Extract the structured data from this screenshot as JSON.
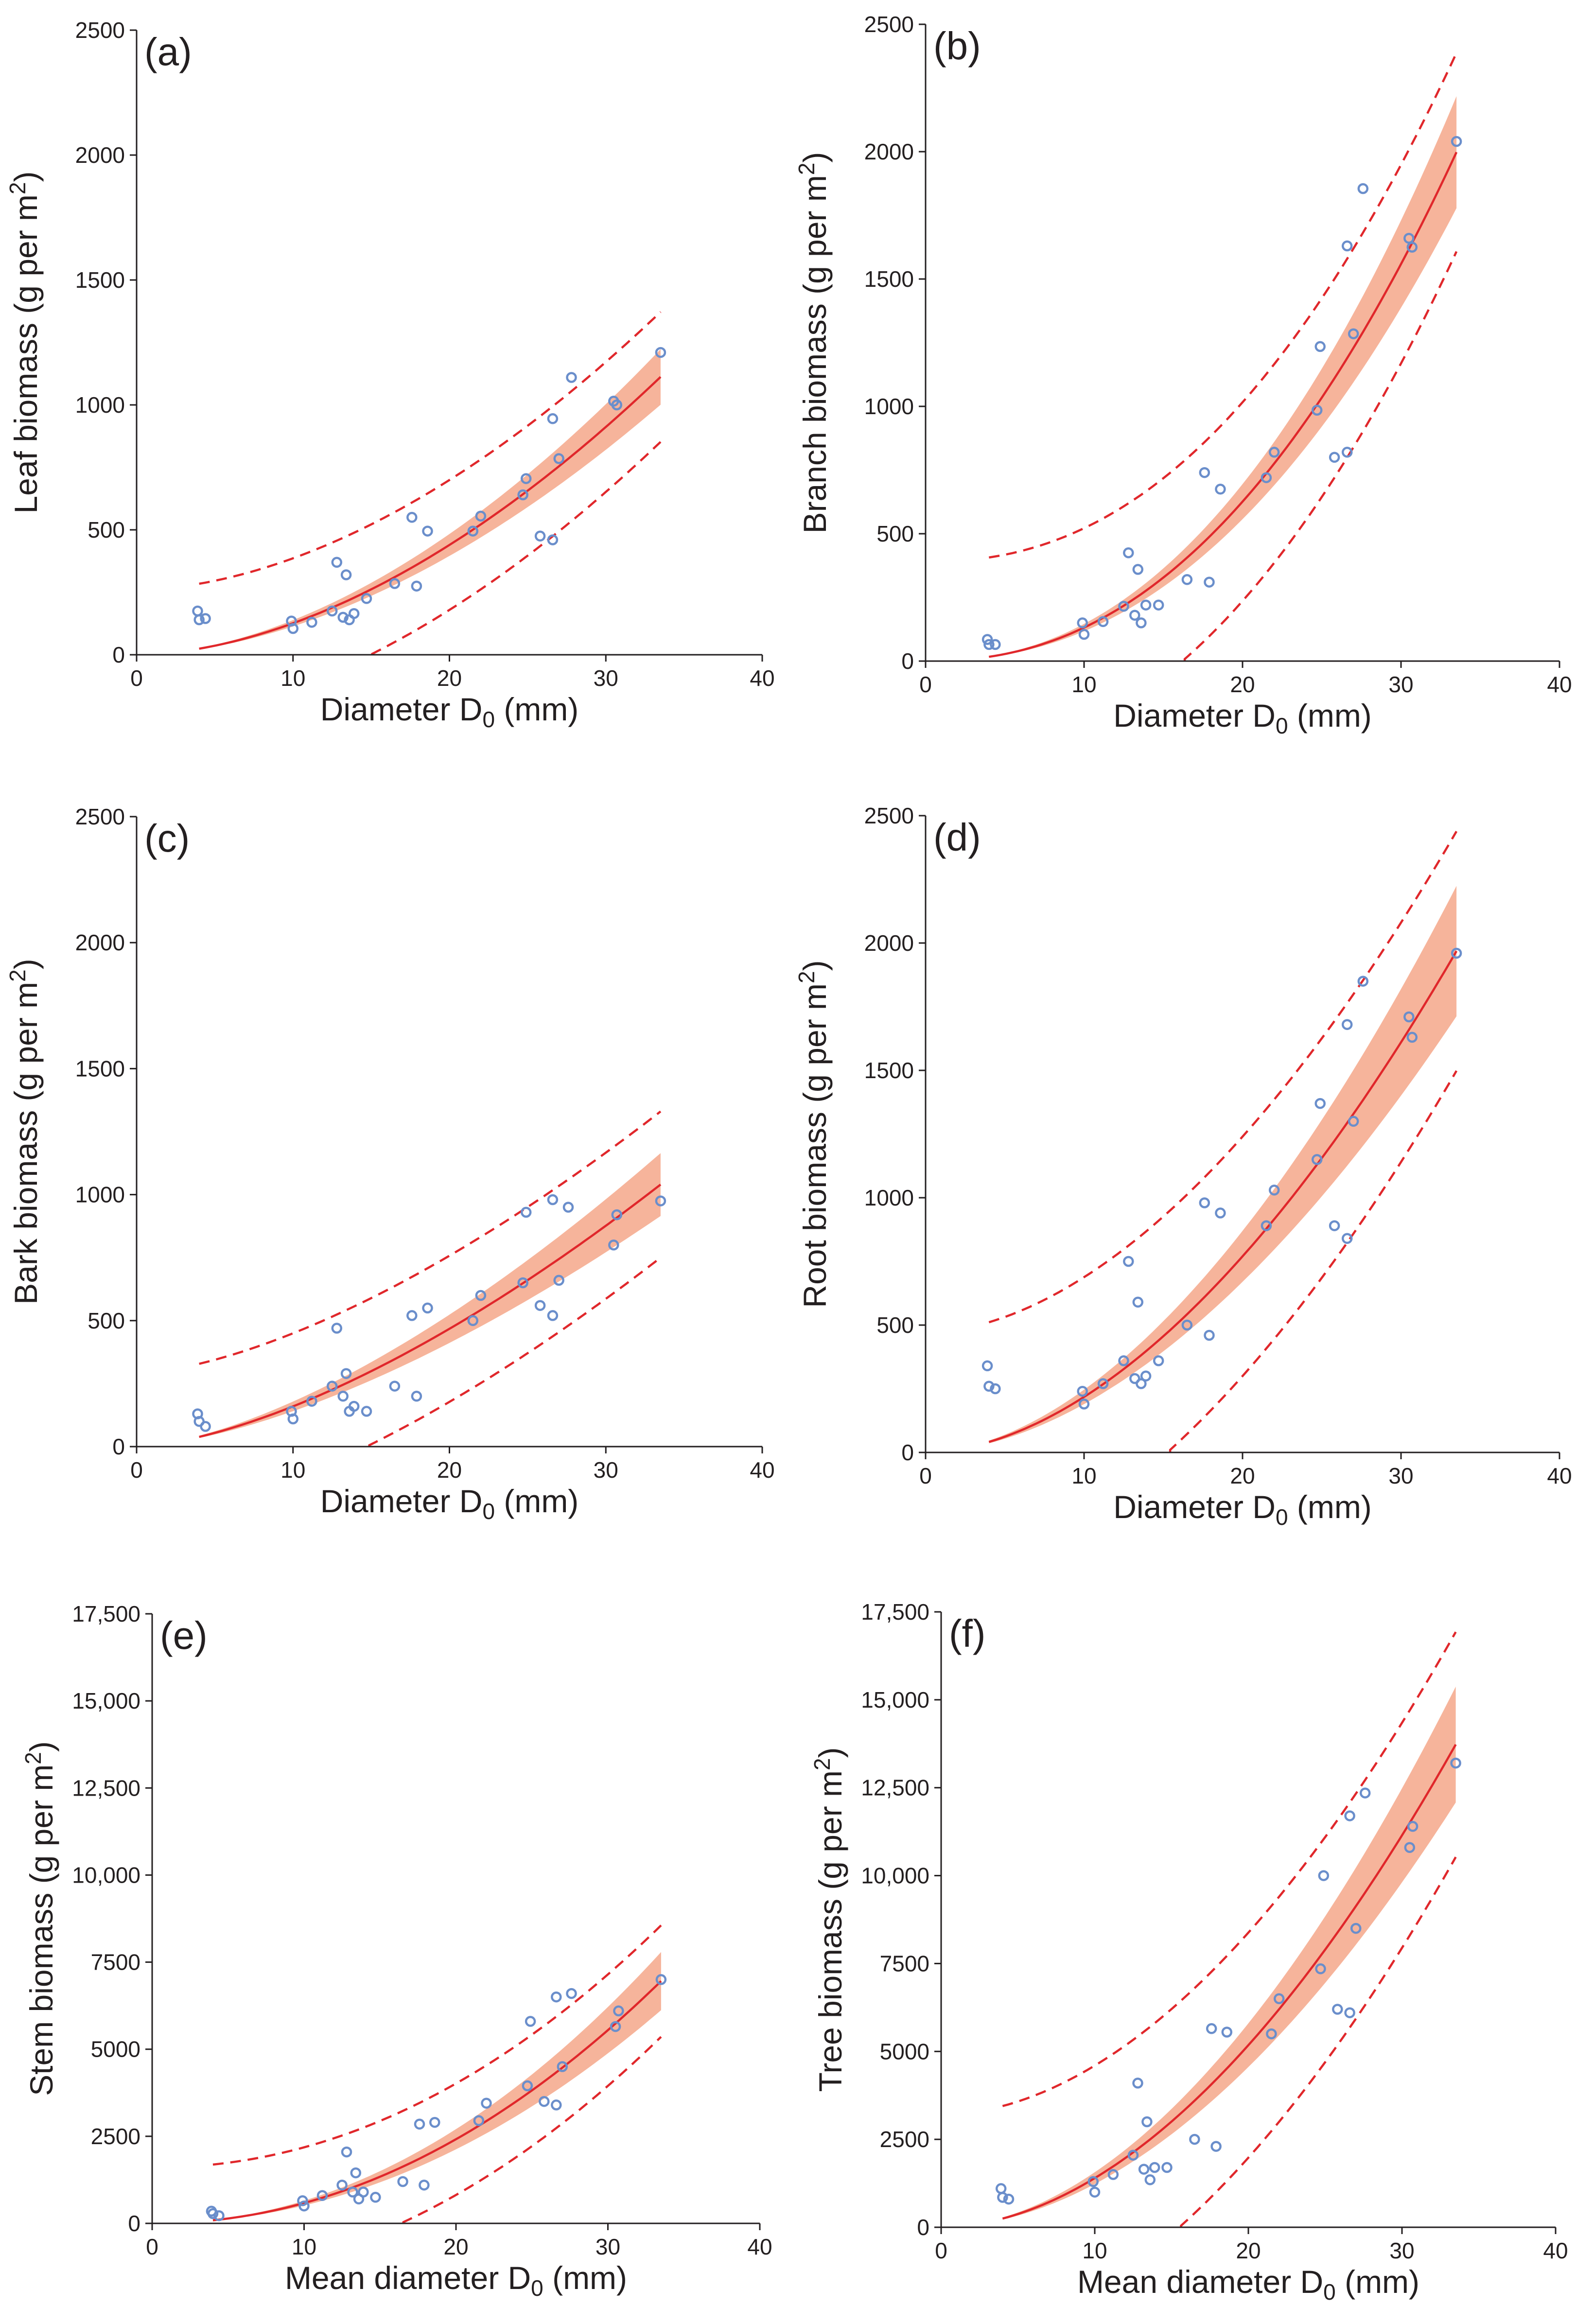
{
  "chart_data": [
    {
      "type": "scatter",
      "panel": "(a)",
      "xlabel": "Diameter D",
      "xlabel_sub": "0",
      "xlabel_unit": " (mm)",
      "ylabel": "Leaf biomass (g per m",
      "ylabel_sup": "2",
      "ylabel_close": ")",
      "xlim": [
        0,
        40
      ],
      "ylim": [
        0,
        2500
      ],
      "xticks": [
        0,
        10,
        20,
        30,
        40
      ],
      "yticks": [
        0,
        500,
        1000,
        1500,
        2000,
        2500
      ],
      "ytick_labels": [
        "0",
        "500",
        "1000",
        "1500",
        "2000",
        "2500"
      ],
      "points": [
        [
          3.9,
          175
        ],
        [
          4.0,
          140
        ],
        [
          4.4,
          145
        ],
        [
          9.9,
          135
        ],
        [
          10.0,
          105
        ],
        [
          11.2,
          130
        ],
        [
          12.5,
          175
        ],
        [
          12.8,
          370
        ],
        [
          13.2,
          150
        ],
        [
          13.4,
          320
        ],
        [
          13.6,
          140
        ],
        [
          13.9,
          165
        ],
        [
          14.7,
          225
        ],
        [
          16.5,
          285
        ],
        [
          17.6,
          550
        ],
        [
          17.9,
          275
        ],
        [
          18.6,
          495
        ],
        [
          21.5,
          495
        ],
        [
          22.0,
          555
        ],
        [
          24.7,
          640
        ],
        [
          24.9,
          705
        ],
        [
          25.8,
          475
        ],
        [
          26.6,
          945
        ],
        [
          26.6,
          460
        ],
        [
          27.0,
          785
        ],
        [
          27.8,
          1110
        ],
        [
          30.5,
          1015
        ],
        [
          30.7,
          1000
        ],
        [
          33.5,
          1210
        ]
      ],
      "fit": {
        "a": 2.0,
        "b": 1.8,
        "x_range": [
          4,
          33.5
        ]
      },
      "confidence_band": {
        "rel": 0.1
      },
      "prediction_interval": {
        "half_width": 260,
        "x_range": [
          4,
          33.5
        ]
      }
    },
    {
      "type": "scatter",
      "panel": "(b)",
      "xlabel": "Diameter D",
      "xlabel_sub": "0",
      "xlabel_unit": " (mm)",
      "ylabel": "Branch biomass (g per m",
      "ylabel_sup": "2",
      "ylabel_close": ")",
      "xlim": [
        0,
        40
      ],
      "ylim": [
        0,
        2500
      ],
      "xticks": [
        0,
        10,
        20,
        30,
        40
      ],
      "yticks": [
        0,
        500,
        1000,
        1500,
        2000,
        2500
      ],
      "ytick_labels": [
        "0",
        "500",
        "1000",
        "1500",
        "2000",
        "2500"
      ],
      "points": [
        [
          3.9,
          85
        ],
        [
          4.0,
          65
        ],
        [
          4.4,
          65
        ],
        [
          9.9,
          150
        ],
        [
          10.0,
          105
        ],
        [
          11.2,
          155
        ],
        [
          12.5,
          215
        ],
        [
          12.8,
          425
        ],
        [
          13.2,
          180
        ],
        [
          13.4,
          360
        ],
        [
          13.6,
          150
        ],
        [
          13.9,
          220
        ],
        [
          14.7,
          220
        ],
        [
          16.5,
          320
        ],
        [
          17.6,
          740
        ],
        [
          17.9,
          310
        ],
        [
          18.6,
          675
        ],
        [
          21.5,
          720
        ],
        [
          22.0,
          820
        ],
        [
          24.7,
          985
        ],
        [
          24.9,
          1235
        ],
        [
          25.8,
          800
        ],
        [
          26.6,
          1630
        ],
        [
          26.6,
          820
        ],
        [
          27.0,
          1285
        ],
        [
          27.6,
          1855
        ],
        [
          30.5,
          1660
        ],
        [
          30.7,
          1625
        ],
        [
          33.5,
          2040
        ]
      ],
      "fit": {
        "a": 0.74,
        "b": 2.25,
        "x_range": [
          4,
          33.5
        ]
      },
      "confidence_band": {
        "rel": 0.11
      },
      "prediction_interval": {
        "half_width": 390,
        "x_range": [
          4,
          33.5
        ]
      }
    },
    {
      "type": "scatter",
      "panel": "(c)",
      "xlabel": "Diameter D",
      "xlabel_sub": "0",
      "xlabel_unit": " (mm)",
      "ylabel": "Bark biomass (g per m",
      "ylabel_sup": "2",
      "ylabel_close": ")",
      "xlim": [
        0,
        40
      ],
      "ylim": [
        0,
        2500
      ],
      "xticks": [
        0,
        10,
        20,
        30,
        40
      ],
      "yticks": [
        0,
        500,
        1000,
        1500,
        2000,
        2500
      ],
      "ytick_labels": [
        "0",
        "500",
        "1000",
        "1500",
        "2000",
        "2500"
      ],
      "points": [
        [
          3.9,
          130
        ],
        [
          4.0,
          100
        ],
        [
          4.4,
          80
        ],
        [
          9.9,
          140
        ],
        [
          10.0,
          110
        ],
        [
          11.2,
          180
        ],
        [
          12.5,
          240
        ],
        [
          12.8,
          470
        ],
        [
          13.2,
          200
        ],
        [
          13.4,
          290
        ],
        [
          13.6,
          140
        ],
        [
          13.9,
          160
        ],
        [
          14.7,
          140
        ],
        [
          16.5,
          240
        ],
        [
          17.6,
          520
        ],
        [
          17.9,
          200
        ],
        [
          18.6,
          550
        ],
        [
          21.5,
          500
        ],
        [
          22.0,
          600
        ],
        [
          24.7,
          650
        ],
        [
          24.9,
          930
        ],
        [
          25.8,
          560
        ],
        [
          26.6,
          980
        ],
        [
          26.6,
          520
        ],
        [
          27.0,
          660
        ],
        [
          27.6,
          950
        ],
        [
          30.5,
          800
        ],
        [
          30.7,
          920
        ],
        [
          33.5,
          975
        ]
      ],
      "fit": {
        "a": 4.5,
        "b": 1.55,
        "x_range": [
          4,
          33.5
        ]
      },
      "confidence_band": {
        "rel": 0.12
      },
      "prediction_interval": {
        "half_width": 290,
        "x_range": [
          4,
          33.5
        ]
      }
    },
    {
      "type": "scatter",
      "panel": "(d)",
      "xlabel": "Diameter D",
      "xlabel_sub": "0",
      "xlabel_unit": " (mm)",
      "ylabel": "Root biomass (g per m",
      "ylabel_sup": "2",
      "ylabel_close": ")",
      "xlim": [
        0,
        40
      ],
      "ylim": [
        0,
        2500
      ],
      "xticks": [
        0,
        10,
        20,
        30,
        40
      ],
      "yticks": [
        0,
        500,
        1000,
        1500,
        2000,
        2500
      ],
      "ytick_labels": [
        "0",
        "500",
        "1000",
        "1500",
        "2000",
        "2500"
      ],
      "points": [
        [
          3.9,
          340
        ],
        [
          4.0,
          260
        ],
        [
          4.4,
          250
        ],
        [
          9.9,
          240
        ],
        [
          10.0,
          190
        ],
        [
          11.2,
          270
        ],
        [
          12.5,
          360
        ],
        [
          12.8,
          750
        ],
        [
          13.2,
          290
        ],
        [
          13.4,
          590
        ],
        [
          13.6,
          270
        ],
        [
          13.9,
          300
        ],
        [
          14.7,
          360
        ],
        [
          16.5,
          500
        ],
        [
          17.6,
          980
        ],
        [
          17.9,
          460
        ],
        [
          18.6,
          940
        ],
        [
          21.5,
          890
        ],
        [
          22.0,
          1030
        ],
        [
          24.7,
          1150
        ],
        [
          24.9,
          1370
        ],
        [
          25.8,
          890
        ],
        [
          26.6,
          1680
        ],
        [
          26.6,
          840
        ],
        [
          27.0,
          1300
        ],
        [
          27.6,
          1850
        ],
        [
          30.5,
          1710
        ],
        [
          30.7,
          1630
        ],
        [
          33.5,
          1960
        ]
      ],
      "fit": {
        "a": 3.3,
        "b": 1.82,
        "x_range": [
          4,
          33.5
        ]
      },
      "confidence_band": {
        "rel": 0.13
      },
      "prediction_interval": {
        "half_width": 470,
        "x_range": [
          4,
          33.5
        ]
      }
    },
    {
      "type": "scatter",
      "panel": "(e)",
      "xlabel": "Mean diameter D",
      "xlabel_sub": "0",
      "xlabel_unit": " (mm)",
      "ylabel": "Stem biomass (g per m",
      "ylabel_sup": "2",
      "ylabel_close": ")",
      "xlim": [
        0,
        40
      ],
      "ylim": [
        0,
        17500
      ],
      "xticks": [
        0,
        10,
        20,
        30,
        40
      ],
      "yticks": [
        0,
        2500,
        5000,
        7500,
        10000,
        12500,
        15000,
        17500
      ],
      "ytick_labels": [
        "0",
        "2500",
        "5000",
        "7500",
        "10,000",
        "12,500",
        "15,000",
        "17,500"
      ],
      "points": [
        [
          3.9,
          350
        ],
        [
          4.0,
          280
        ],
        [
          4.4,
          220
        ],
        [
          9.9,
          650
        ],
        [
          10.0,
          500
        ],
        [
          11.2,
          800
        ],
        [
          12.5,
          1100
        ],
        [
          12.8,
          2050
        ],
        [
          13.2,
          900
        ],
        [
          13.4,
          1450
        ],
        [
          13.6,
          700
        ],
        [
          13.9,
          900
        ],
        [
          14.7,
          750
        ],
        [
          16.5,
          1200
        ],
        [
          17.6,
          2850
        ],
        [
          17.9,
          1100
        ],
        [
          18.6,
          2900
        ],
        [
          21.5,
          2950
        ],
        [
          22.0,
          3450
        ],
        [
          24.7,
          3950
        ],
        [
          24.9,
          5800
        ],
        [
          25.8,
          3500
        ],
        [
          26.6,
          6500
        ],
        [
          26.6,
          3400
        ],
        [
          27.0,
          4500
        ],
        [
          27.6,
          6600
        ],
        [
          30.5,
          5650
        ],
        [
          30.7,
          6100
        ],
        [
          33.5,
          7000
        ]
      ],
      "fit": {
        "a": 5.2,
        "b": 2.05,
        "x_range": [
          4,
          33.5
        ]
      },
      "confidence_band": {
        "rel": 0.12
      },
      "prediction_interval": {
        "half_width": 1600,
        "x_range": [
          4,
          33.5
        ]
      }
    },
    {
      "type": "scatter",
      "panel": "(f)",
      "xlabel": "Mean diameter D",
      "xlabel_sub": "0",
      "xlabel_unit": " (mm)",
      "ylabel": "Tree biomass (g per m",
      "ylabel_sup": "2",
      "ylabel_close": ")",
      "xlim": [
        0,
        40
      ],
      "ylim": [
        0,
        17500
      ],
      "xticks": [
        0,
        10,
        20,
        30,
        40
      ],
      "yticks": [
        0,
        2500,
        5000,
        7500,
        10000,
        12500,
        15000,
        17500
      ],
      "ytick_labels": [
        "0",
        "2500",
        "5000",
        "7500",
        "10,000",
        "12,500",
        "15,000",
        "17,500"
      ],
      "points": [
        [
          3.9,
          1100
        ],
        [
          4.0,
          850
        ],
        [
          4.4,
          800
        ],
        [
          9.9,
          1300
        ],
        [
          10.0,
          1000
        ],
        [
          11.2,
          1500
        ],
        [
          12.5,
          2050
        ],
        [
          12.8,
          4100
        ],
        [
          13.2,
          1650
        ],
        [
          13.4,
          3000
        ],
        [
          13.6,
          1350
        ],
        [
          13.9,
          1700
        ],
        [
          14.7,
          1700
        ],
        [
          16.5,
          2500
        ],
        [
          17.6,
          5650
        ],
        [
          17.9,
          2300
        ],
        [
          18.6,
          5550
        ],
        [
          21.5,
          5500
        ],
        [
          22.0,
          6500
        ],
        [
          24.7,
          7350
        ],
        [
          24.9,
          10000
        ],
        [
          25.8,
          6200
        ],
        [
          26.6,
          11700
        ],
        [
          26.6,
          6100
        ],
        [
          27.0,
          8500
        ],
        [
          27.6,
          12350
        ],
        [
          30.5,
          10800
        ],
        [
          30.7,
          11400
        ],
        [
          33.5,
          13200
        ]
      ],
      "fit": {
        "a": 18.0,
        "b": 1.89,
        "x_range": [
          4,
          33.5
        ]
      },
      "confidence_band": {
        "rel": 0.12
      },
      "prediction_interval": {
        "half_width": 3200,
        "x_range": [
          4,
          33.5
        ]
      }
    }
  ],
  "colors": {
    "fit_line": "#e0272b",
    "band_fill": "#f5a789",
    "points": "#6a8ecb",
    "axis": "#231f20"
  }
}
